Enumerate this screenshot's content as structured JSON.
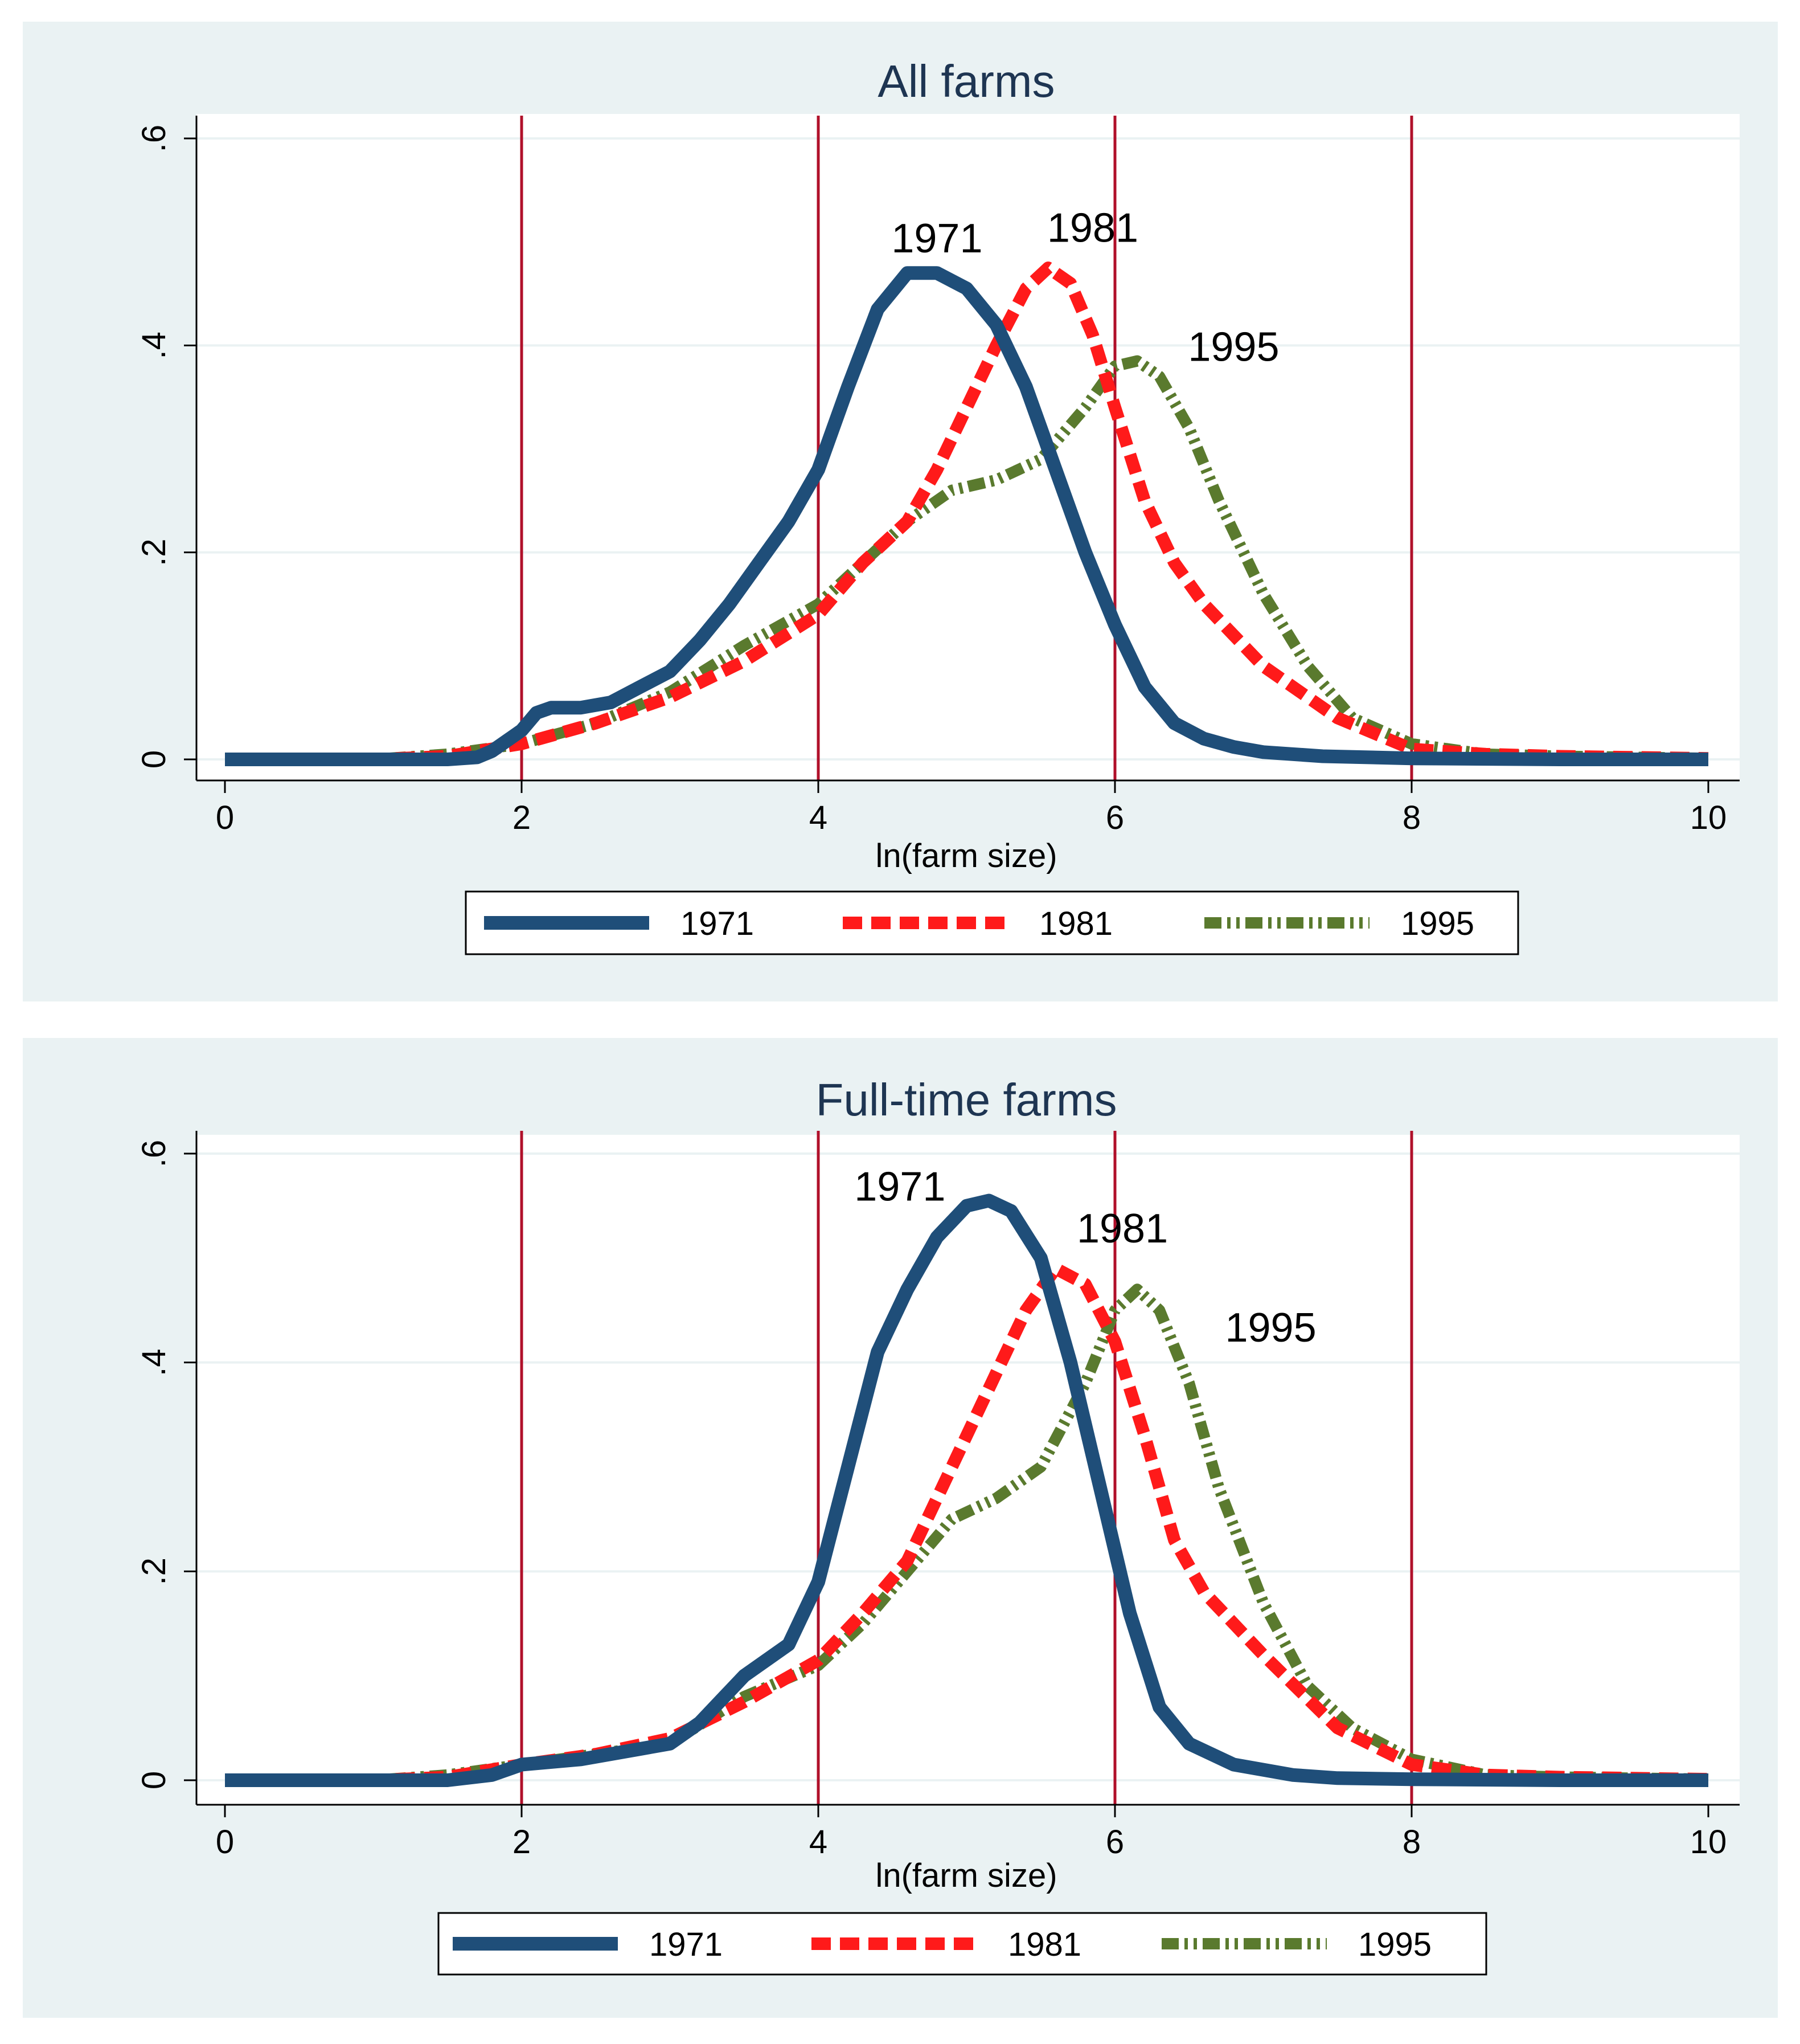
{
  "chart_data": [
    {
      "type": "line",
      "title": "All farms",
      "xlabel": "ln(farm size)",
      "ylabel": "",
      "xlim": [
        0,
        10
      ],
      "ylim": [
        0,
        0.6
      ],
      "xticks": [
        "0",
        "2",
        "4",
        "6",
        "8",
        "10"
      ],
      "yticks": [
        "0",
        ".2",
        ".4",
        ".6"
      ],
      "vlines": [
        2,
        4,
        6,
        8
      ],
      "series": [
        {
          "name": "1971",
          "color": "#1f4e79",
          "style": "solid",
          "x": [
            0,
            1.5,
            1.7,
            1.8,
            2.0,
            2.1,
            2.2,
            2.4,
            2.6,
            2.8,
            3.0,
            3.2,
            3.4,
            3.6,
            3.8,
            4.0,
            4.2,
            4.4,
            4.6,
            4.8,
            5.0,
            5.2,
            5.4,
            5.6,
            5.8,
            6.0,
            6.2,
            6.4,
            6.6,
            6.8,
            7.0,
            7.4,
            8.0,
            9.0,
            10.0
          ],
          "y": [
            0,
            0,
            0.002,
            0.008,
            0.028,
            0.045,
            0.05,
            0.05,
            0.055,
            0.07,
            0.085,
            0.115,
            0.15,
            0.19,
            0.23,
            0.28,
            0.36,
            0.435,
            0.47,
            0.47,
            0.455,
            0.42,
            0.36,
            0.28,
            0.2,
            0.13,
            0.07,
            0.035,
            0.02,
            0.012,
            0.007,
            0.003,
            0.001,
            0,
            0
          ]
        },
        {
          "name": "1981",
          "color": "#ff1a1a",
          "style": "dash",
          "x": [
            0,
            1.0,
            1.5,
            2.0,
            2.5,
            3.0,
            3.5,
            4.0,
            4.3,
            4.6,
            4.8,
            5.0,
            5.2,
            5.4,
            5.55,
            5.7,
            5.85,
            6.0,
            6.2,
            6.4,
            6.6,
            7.0,
            7.5,
            8.0,
            8.5,
            9.0,
            10.0
          ],
          "y": [
            0,
            0,
            0.003,
            0.015,
            0.035,
            0.06,
            0.095,
            0.14,
            0.19,
            0.23,
            0.28,
            0.34,
            0.4,
            0.455,
            0.475,
            0.46,
            0.41,
            0.34,
            0.25,
            0.19,
            0.15,
            0.09,
            0.04,
            0.01,
            0.005,
            0.003,
            0.001
          ]
        },
        {
          "name": "1995",
          "color": "#5a7a2e",
          "style": "dashdot",
          "x": [
            0,
            1.0,
            1.5,
            2.0,
            2.5,
            3.0,
            3.5,
            4.0,
            4.3,
            4.6,
            4.9,
            5.2,
            5.5,
            5.8,
            6.0,
            6.15,
            6.3,
            6.5,
            6.7,
            7.0,
            7.3,
            7.6,
            8.0,
            8.5,
            9.0,
            10.0
          ],
          "y": [
            0,
            0,
            0.005,
            0.015,
            0.035,
            0.065,
            0.11,
            0.15,
            0.19,
            0.23,
            0.26,
            0.27,
            0.29,
            0.34,
            0.38,
            0.385,
            0.37,
            0.32,
            0.25,
            0.16,
            0.09,
            0.04,
            0.015,
            0.005,
            0.003,
            0.001
          ]
        }
      ],
      "annotations": [
        {
          "text": "1971",
          "x": 4.8,
          "y": 0.49
        },
        {
          "text": "1981",
          "x": 5.85,
          "y": 0.5
        },
        {
          "text": "1995",
          "x": 6.8,
          "y": 0.385
        }
      ],
      "legend": {
        "position": "bottom",
        "entries": [
          "1971",
          "1981",
          "1995"
        ]
      }
    },
    {
      "type": "line",
      "title": "Full-time farms",
      "xlabel": "ln(farm size)",
      "ylabel": "",
      "xlim": [
        0,
        10
      ],
      "ylim": [
        0,
        0.6
      ],
      "xticks": [
        "0",
        "2",
        "4",
        "6",
        "8",
        "10"
      ],
      "yticks": [
        "0",
        ".2",
        ".4",
        ".6"
      ],
      "vlines": [
        2,
        4,
        6,
        8
      ],
      "series": [
        {
          "name": "1971",
          "color": "#1f4e79",
          "style": "solid",
          "x": [
            0,
            1.5,
            1.8,
            2.0,
            2.4,
            2.8,
            3.0,
            3.2,
            3.5,
            3.8,
            4.0,
            4.2,
            4.4,
            4.6,
            4.8,
            5.0,
            5.15,
            5.3,
            5.5,
            5.7,
            5.9,
            6.1,
            6.3,
            6.5,
            6.8,
            7.2,
            7.5,
            8.0,
            9.0,
            10.0
          ],
          "y": [
            0,
            0,
            0.005,
            0.015,
            0.02,
            0.03,
            0.035,
            0.055,
            0.1,
            0.13,
            0.19,
            0.3,
            0.41,
            0.47,
            0.52,
            0.55,
            0.555,
            0.545,
            0.5,
            0.4,
            0.28,
            0.16,
            0.07,
            0.035,
            0.015,
            0.005,
            0.002,
            0.001,
            0,
            0
          ]
        },
        {
          "name": "1981",
          "color": "#ff1a1a",
          "style": "dash",
          "x": [
            0,
            1.0,
            1.5,
            2.0,
            2.5,
            3.0,
            3.5,
            4.0,
            4.3,
            4.6,
            4.9,
            5.2,
            5.4,
            5.6,
            5.8,
            6.0,
            6.2,
            6.4,
            6.6,
            7.0,
            7.5,
            8.0,
            8.5,
            9.0,
            10.0
          ],
          "y": [
            0,
            0,
            0.003,
            0.015,
            0.025,
            0.04,
            0.075,
            0.115,
            0.16,
            0.21,
            0.3,
            0.39,
            0.45,
            0.49,
            0.475,
            0.42,
            0.33,
            0.23,
            0.18,
            0.12,
            0.05,
            0.015,
            0.005,
            0.003,
            0.001
          ]
        },
        {
          "name": "1995",
          "color": "#5a7a2e",
          "style": "dashdot",
          "x": [
            0,
            1.0,
            1.5,
            2.0,
            2.5,
            3.0,
            3.5,
            4.0,
            4.3,
            4.6,
            4.9,
            5.2,
            5.5,
            5.8,
            6.0,
            6.15,
            6.3,
            6.5,
            6.7,
            7.0,
            7.3,
            7.6,
            8.0,
            8.5,
            9.0,
            10.0
          ],
          "y": [
            0,
            0,
            0.005,
            0.015,
            0.025,
            0.035,
            0.08,
            0.11,
            0.15,
            0.2,
            0.25,
            0.27,
            0.3,
            0.38,
            0.45,
            0.47,
            0.45,
            0.38,
            0.28,
            0.17,
            0.09,
            0.05,
            0.02,
            0.005,
            0.003,
            0.001
          ]
        }
      ],
      "annotations": [
        {
          "text": "1971",
          "x": 4.55,
          "y": 0.555
        },
        {
          "text": "1981",
          "x": 6.05,
          "y": 0.515
        },
        {
          "text": "1995",
          "x": 7.05,
          "y": 0.42
        }
      ],
      "legend": {
        "position": "bottom",
        "entries": [
          "1971",
          "1981",
          "1995"
        ]
      }
    }
  ]
}
